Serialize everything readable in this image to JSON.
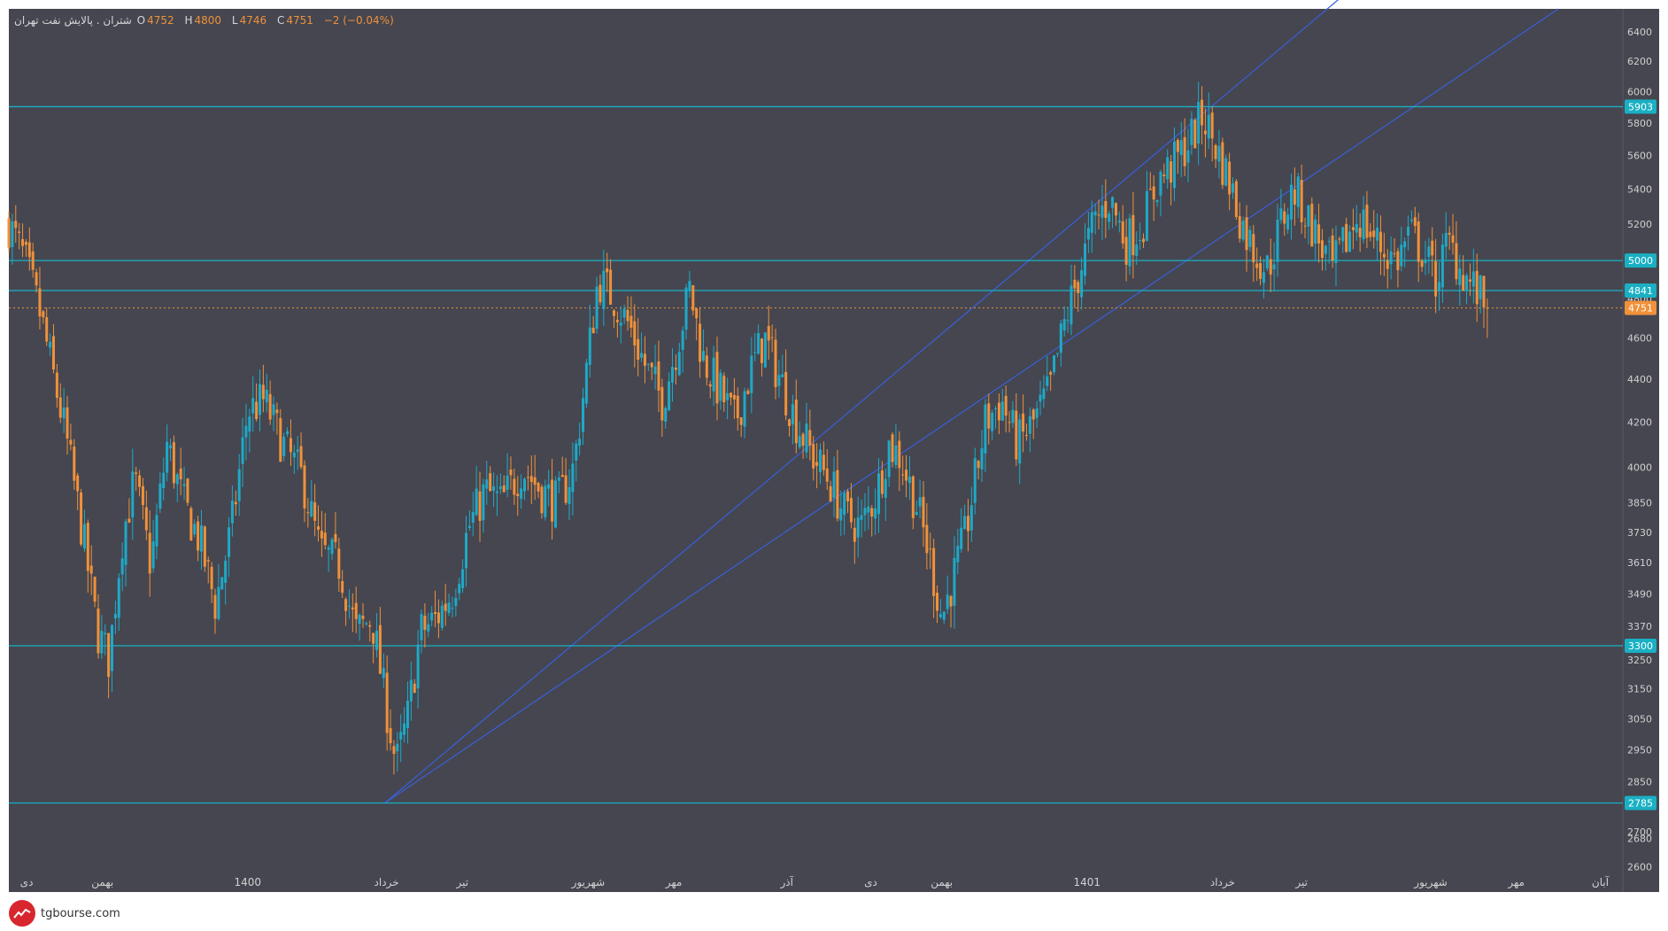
{
  "legend": {
    "symbol": "شتران . پالایش نفت تهران",
    "o_label": "O",
    "o_value": "4752",
    "h_label": "H",
    "h_value": "4800",
    "l_label": "L",
    "l_value": "4746",
    "c_label": "C",
    "c_value": "4751",
    "change": "−2 (−0.04%)"
  },
  "brand": {
    "site": "tgbourse.com"
  },
  "colors": {
    "background": "#454650",
    "up": "#1fa9c7",
    "down": "#f0913a",
    "hline": "#1ab0c4",
    "channel": "#3a5fd8",
    "axis_text": "#d0d0d0"
  },
  "chart_data": {
    "type": "candlestick",
    "y_scale": "log",
    "ylim": [
      2530,
      6560
    ],
    "y_ticks": [
      2600,
      2680,
      2700,
      2850,
      2950,
      3050,
      3150,
      3250,
      3370,
      3490,
      3610,
      3730,
      3850,
      4000,
      4200,
      4400,
      4600,
      4800,
      5000,
      5200,
      5400,
      5600,
      5800,
      6000,
      6200,
      6400
    ],
    "x_labels": [
      {
        "label": "دی",
        "pos": 0.011
      },
      {
        "label": "بهمن",
        "pos": 0.058
      },
      {
        "label": "1400",
        "pos": 0.148
      },
      {
        "label": "خرداد",
        "pos": 0.234
      },
      {
        "label": "تیر",
        "pos": 0.281
      },
      {
        "label": "شهریور",
        "pos": 0.359
      },
      {
        "label": "مهر",
        "pos": 0.412
      },
      {
        "label": "آذر",
        "pos": 0.482
      },
      {
        "label": "دی",
        "pos": 0.534
      },
      {
        "label": "بهمن",
        "pos": 0.578
      },
      {
        "label": "1401",
        "pos": 0.668
      },
      {
        "label": "خرداد",
        "pos": 0.752
      },
      {
        "label": "تیر",
        "pos": 0.801
      },
      {
        "label": "شهریور",
        "pos": 0.881
      },
      {
        "label": "مهر",
        "pos": 0.934
      },
      {
        "label": "آبان",
        "pos": 0.986
      }
    ],
    "horizontal_levels": [
      {
        "value": 5903,
        "label": "5903"
      },
      {
        "value": 5000,
        "label": "5000"
      },
      {
        "value": 4841,
        "label": "4841"
      },
      {
        "value": 3300,
        "label": "3300"
      },
      {
        "value": 2785,
        "label": "2785"
      }
    ],
    "current_price": {
      "value": 4751,
      "label": "4751"
    },
    "path": [
      {
        "t": 0.0,
        "p": 5200
      },
      {
        "t": 0.01,
        "p": 5000
      },
      {
        "t": 0.02,
        "p": 4700
      },
      {
        "t": 0.035,
        "p": 4150
      },
      {
        "t": 0.045,
        "p": 3750
      },
      {
        "t": 0.055,
        "p": 3350
      },
      {
        "t": 0.062,
        "p": 3250
      },
      {
        "t": 0.07,
        "p": 3700
      },
      {
        "t": 0.078,
        "p": 3950
      },
      {
        "t": 0.088,
        "p": 3600
      },
      {
        "t": 0.098,
        "p": 4100
      },
      {
        "t": 0.108,
        "p": 3850
      },
      {
        "t": 0.118,
        "p": 3700
      },
      {
        "t": 0.128,
        "p": 3450
      },
      {
        "t": 0.138,
        "p": 3750
      },
      {
        "t": 0.148,
        "p": 4250
      },
      {
        "t": 0.158,
        "p": 4300
      },
      {
        "t": 0.17,
        "p": 4100
      },
      {
        "t": 0.182,
        "p": 3950
      },
      {
        "t": 0.193,
        "p": 3650
      },
      {
        "t": 0.205,
        "p": 3600
      },
      {
        "t": 0.215,
        "p": 3350
      },
      {
        "t": 0.225,
        "p": 3400
      },
      {
        "t": 0.232,
        "p": 3150
      },
      {
        "t": 0.24,
        "p": 2900
      },
      {
        "t": 0.247,
        "p": 3050
      },
      {
        "t": 0.255,
        "p": 3350
      },
      {
        "t": 0.265,
        "p": 3400
      },
      {
        "t": 0.275,
        "p": 3500
      },
      {
        "t": 0.285,
        "p": 3750
      },
      {
        "t": 0.295,
        "p": 3900
      },
      {
        "t": 0.305,
        "p": 3850
      },
      {
        "t": 0.318,
        "p": 4000
      },
      {
        "t": 0.33,
        "p": 3900
      },
      {
        "t": 0.34,
        "p": 3850
      },
      {
        "t": 0.35,
        "p": 4000
      },
      {
        "t": 0.358,
        "p": 4450
      },
      {
        "t": 0.365,
        "p": 4900
      },
      {
        "t": 0.375,
        "p": 4800
      },
      {
        "t": 0.385,
        "p": 4650
      },
      {
        "t": 0.395,
        "p": 4450
      },
      {
        "t": 0.405,
        "p": 4300
      },
      {
        "t": 0.415,
        "p": 4600
      },
      {
        "t": 0.422,
        "p": 4850
      },
      {
        "t": 0.43,
        "p": 4500
      },
      {
        "t": 0.44,
        "p": 4350
      },
      {
        "t": 0.45,
        "p": 4200
      },
      {
        "t": 0.46,
        "p": 4450
      },
      {
        "t": 0.468,
        "p": 4600
      },
      {
        "t": 0.478,
        "p": 4400
      },
      {
        "t": 0.488,
        "p": 4200
      },
      {
        "t": 0.498,
        "p": 4050
      },
      {
        "t": 0.508,
        "p": 3950
      },
      {
        "t": 0.518,
        "p": 3800
      },
      {
        "t": 0.528,
        "p": 3750
      },
      {
        "t": 0.538,
        "p": 3900
      },
      {
        "t": 0.545,
        "p": 4100
      },
      {
        "t": 0.552,
        "p": 4050
      },
      {
        "t": 0.562,
        "p": 3850
      },
      {
        "t": 0.57,
        "p": 3650
      },
      {
        "t": 0.578,
        "p": 3400
      },
      {
        "t": 0.585,
        "p": 3550
      },
      {
        "t": 0.592,
        "p": 3700
      },
      {
        "t": 0.605,
        "p": 4200
      },
      {
        "t": 0.615,
        "p": 4300
      },
      {
        "t": 0.625,
        "p": 4100
      },
      {
        "t": 0.635,
        "p": 4200
      },
      {
        "t": 0.645,
        "p": 4350
      },
      {
        "t": 0.655,
        "p": 4700
      },
      {
        "t": 0.662,
        "p": 4900
      },
      {
        "t": 0.672,
        "p": 5200
      },
      {
        "t": 0.682,
        "p": 5350
      },
      {
        "t": 0.692,
        "p": 5100
      },
      {
        "t": 0.702,
        "p": 5200
      },
      {
        "t": 0.712,
        "p": 5450
      },
      {
        "t": 0.722,
        "p": 5550
      },
      {
        "t": 0.732,
        "p": 5700
      },
      {
        "t": 0.74,
        "p": 5850
      },
      {
        "t": 0.748,
        "p": 5650
      },
      {
        "t": 0.756,
        "p": 5450
      },
      {
        "t": 0.764,
        "p": 5200
      },
      {
        "t": 0.772,
        "p": 5050
      },
      {
        "t": 0.78,
        "p": 4950
      },
      {
        "t": 0.788,
        "p": 5200
      },
      {
        "t": 0.796,
        "p": 5400
      },
      {
        "t": 0.804,
        "p": 5250
      },
      {
        "t": 0.812,
        "p": 5100
      },
      {
        "t": 0.82,
        "p": 4950
      },
      {
        "t": 0.828,
        "p": 5100
      },
      {
        "t": 0.836,
        "p": 5250
      },
      {
        "t": 0.844,
        "p": 5150
      },
      {
        "t": 0.852,
        "p": 5050
      },
      {
        "t": 0.86,
        "p": 5000
      },
      {
        "t": 0.868,
        "p": 5150
      },
      {
        "t": 0.876,
        "p": 5050
      },
      {
        "t": 0.884,
        "p": 4900
      },
      {
        "t": 0.892,
        "p": 5100
      },
      {
        "t": 0.9,
        "p": 4950
      },
      {
        "t": 0.908,
        "p": 4850
      },
      {
        "t": 0.916,
        "p": 4751
      }
    ]
  }
}
